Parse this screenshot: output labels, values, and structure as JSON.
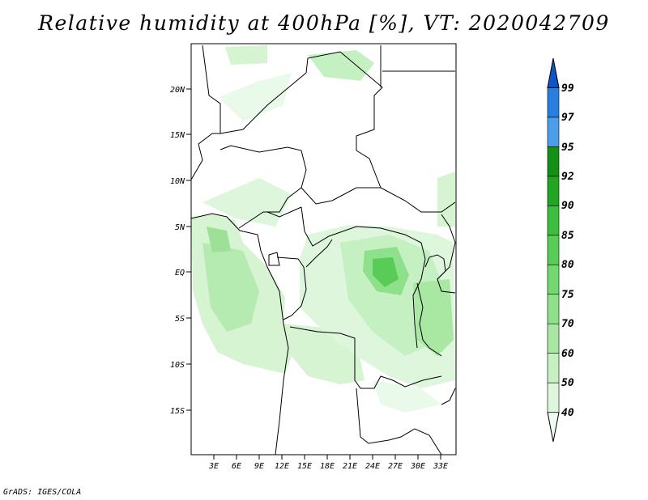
{
  "title": "Relative humidity at 400hPa [%], VT: 2020042709",
  "credit": "GrADS: IGES/COLA",
  "map": {
    "lat_labels": [
      "20N",
      "15N",
      "10N",
      "5N",
      "EQ",
      "5S",
      "10S",
      "15S"
    ],
    "lon_labels": [
      "3E",
      "6E",
      "9E",
      "12E",
      "15E",
      "18E",
      "21E",
      "24E",
      "27E",
      "30E",
      "33E"
    ]
  },
  "colorbar": {
    "levels": [
      "40",
      "50",
      "60",
      "70",
      "75",
      "80",
      "85",
      "90",
      "92",
      "95",
      "97",
      "99"
    ],
    "colors": [
      "#f0fcf0",
      "#ddf6dc",
      "#c5f0c2",
      "#a8e8a2",
      "#8ee08a",
      "#74d870",
      "#58cc56",
      "#3fbd3e",
      "#22a523",
      "#159016",
      "#4c9ee8",
      "#2a7ee0",
      "#0e55c8"
    ]
  }
}
